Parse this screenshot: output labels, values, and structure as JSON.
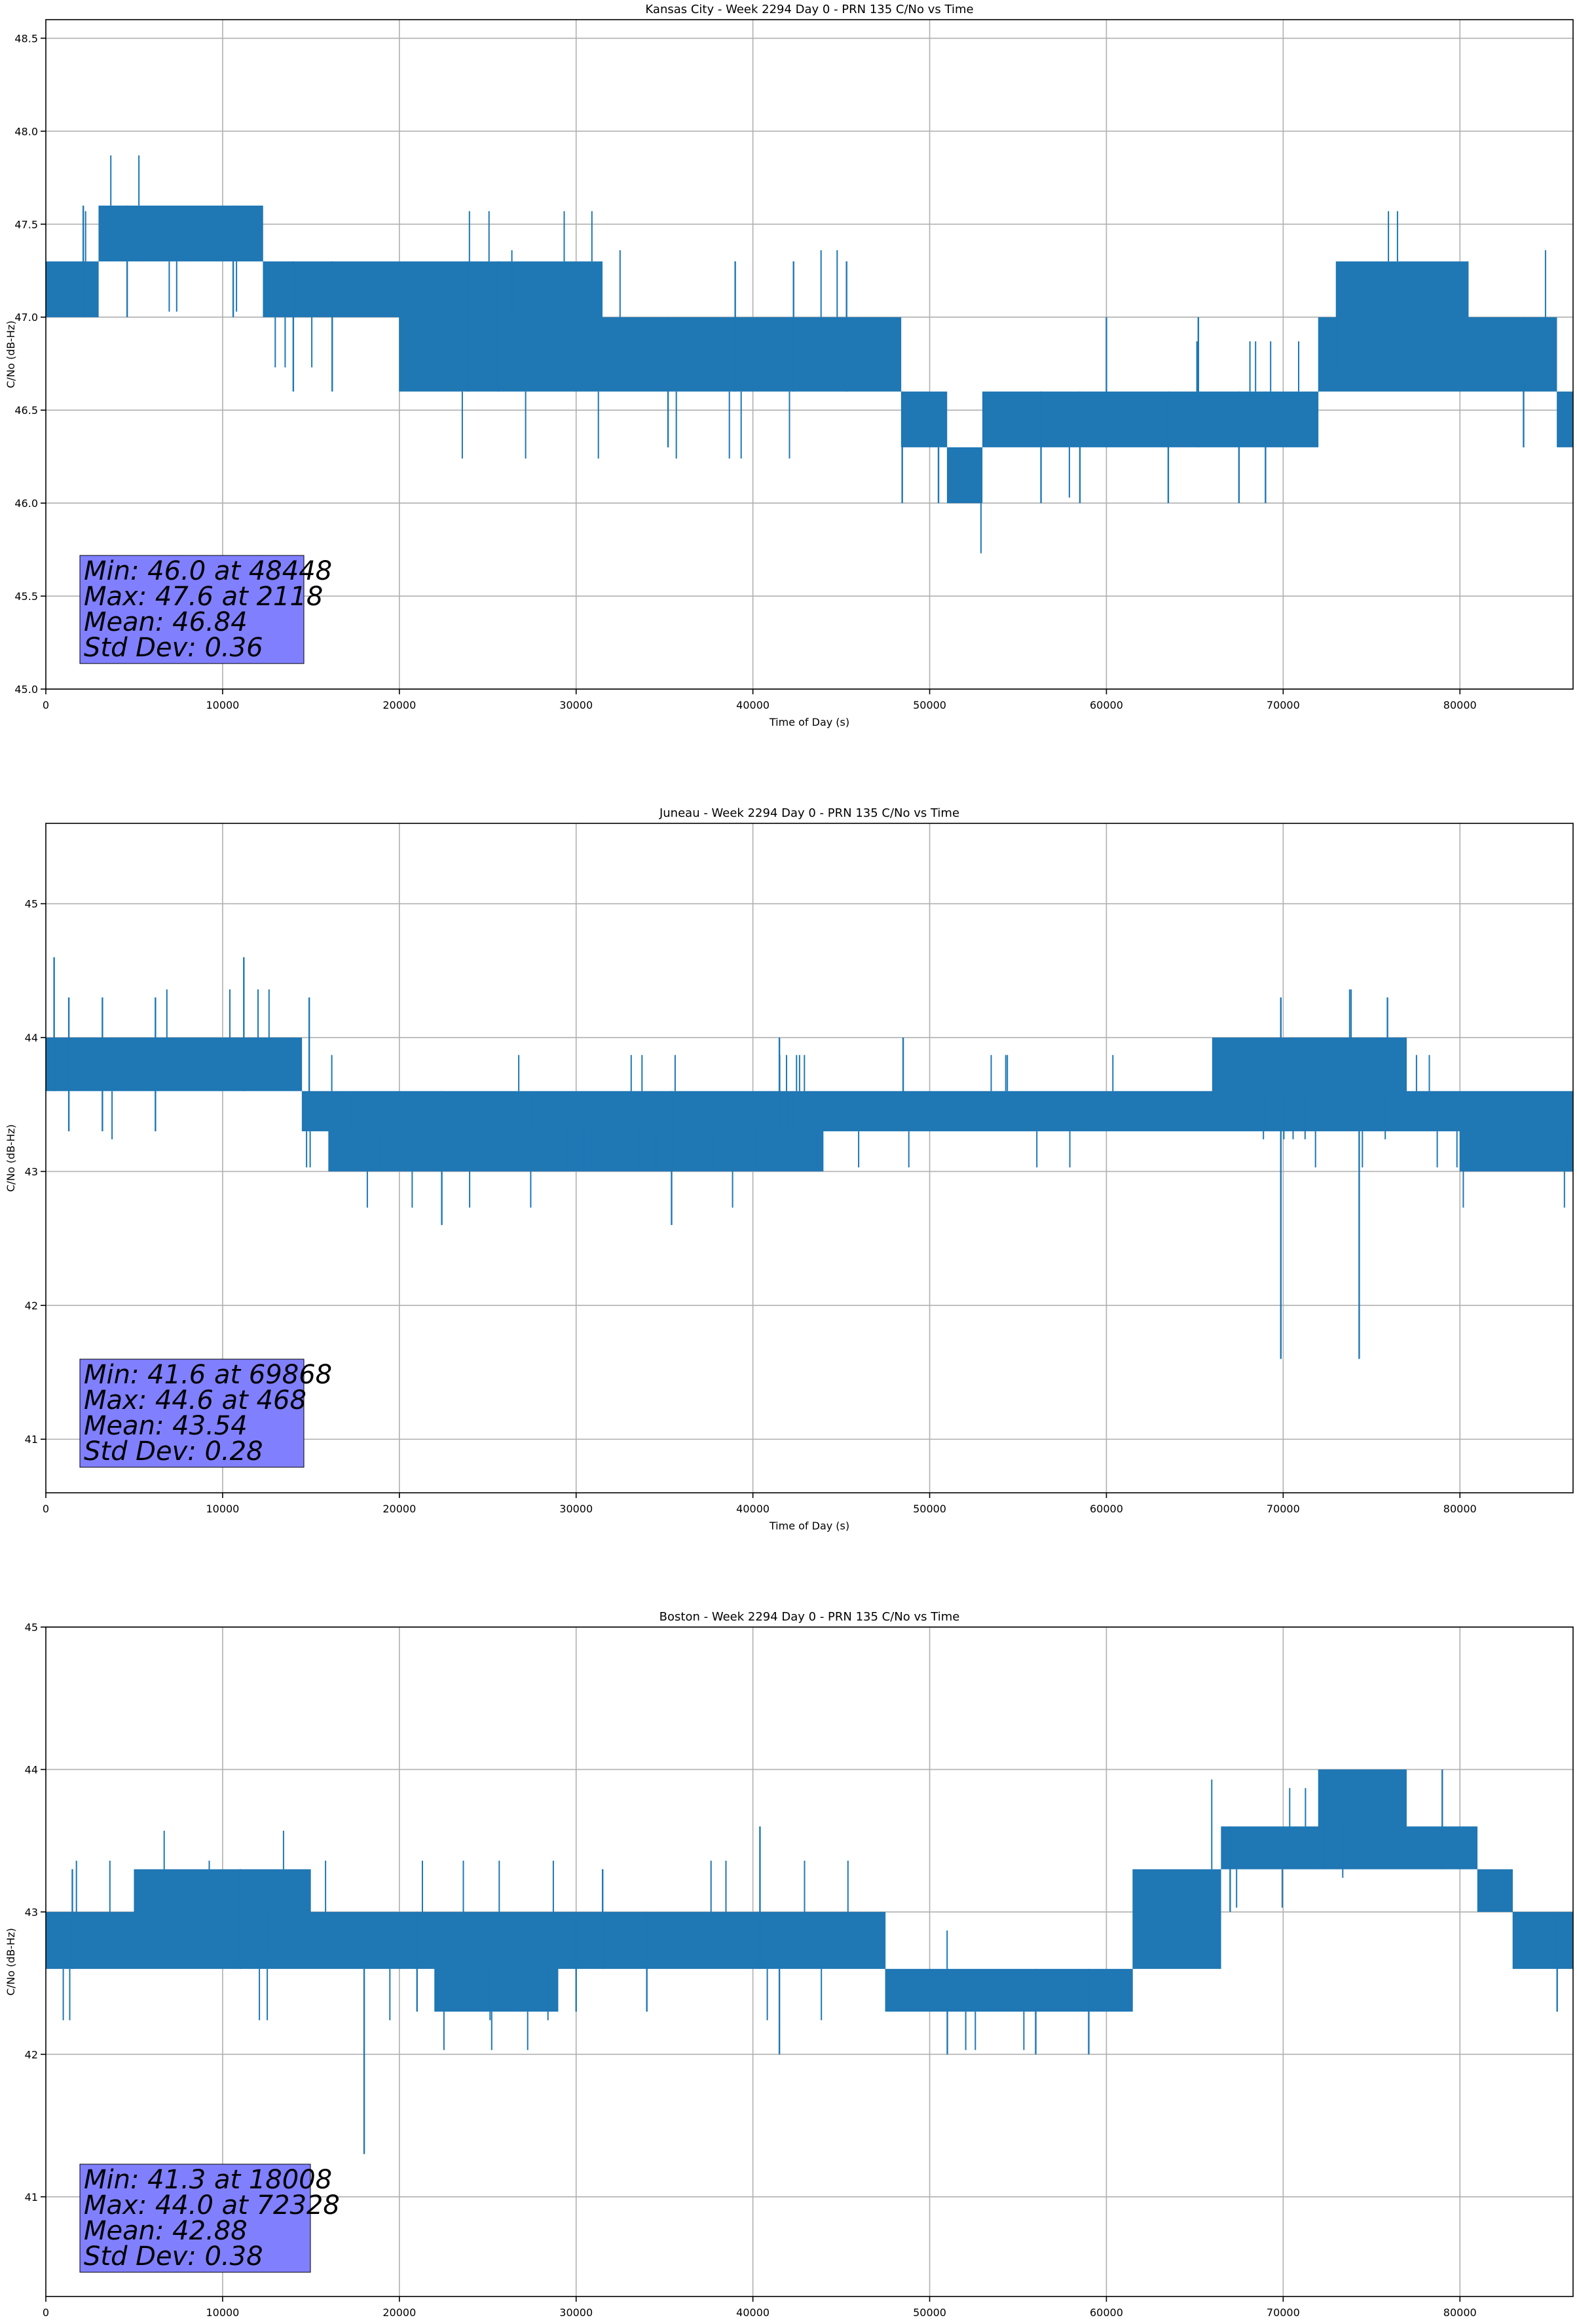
{
  "chart_data": [
    {
      "type": "line",
      "title": "Kansas City - Week 2294 Day 0 - PRN 135 C/No vs Time",
      "xlabel": "Time of Day (s)",
      "ylabel": "C/No (dB-Hz)",
      "xlim": [
        0,
        86400
      ],
      "ylim": [
        45.0,
        48.6
      ],
      "x_ticks": [
        0,
        10000,
        20000,
        30000,
        40000,
        50000,
        60000,
        70000,
        80000
      ],
      "y_ticks": [
        45.0,
        45.5,
        46.0,
        46.5,
        47.0,
        47.5,
        48.0,
        48.5
      ],
      "y_tick_labels": [
        "45.0",
        "45.5",
        "46.0",
        "46.5",
        "47.0",
        "47.5",
        "48.0",
        "48.5"
      ],
      "grid": true,
      "color": "#1f77b4",
      "series_segments": [
        {
          "x_start": 0,
          "x_end": 3000,
          "low": 47.0,
          "high": 47.3
        },
        {
          "x_start": 3000,
          "x_end": 12300,
          "low": 47.3,
          "high": 47.6
        },
        {
          "x_start": 12300,
          "x_end": 31500,
          "low": 47.0,
          "high": 47.3
        },
        {
          "x_start": 20000,
          "x_end": 31500,
          "low": 46.6,
          "high": 47.0
        },
        {
          "x_start": 31500,
          "x_end": 48400,
          "low": 46.6,
          "high": 47.0
        },
        {
          "x_start": 48400,
          "x_end": 51000,
          "low": 46.3,
          "high": 46.6
        },
        {
          "x_start": 51000,
          "x_end": 53000,
          "low": 46.0,
          "high": 46.3
        },
        {
          "x_start": 53000,
          "x_end": 72000,
          "low": 46.3,
          "high": 46.6
        },
        {
          "x_start": 72000,
          "x_end": 81000,
          "low": 46.6,
          "high": 47.0
        },
        {
          "x_start": 73000,
          "x_end": 80500,
          "low": 47.0,
          "high": 47.3
        },
        {
          "x_start": 81000,
          "x_end": 85500,
          "low": 46.6,
          "high": 47.0
        },
        {
          "x_start": 85500,
          "x_end": 86400,
          "low": 46.3,
          "high": 46.6
        }
      ],
      "spikes": [
        {
          "x": 2118,
          "low": 47.0,
          "high": 47.6
        },
        {
          "x": 4600,
          "low": 47.0,
          "high": 47.6
        },
        {
          "x": 10600,
          "low": 47.0,
          "high": 47.6
        },
        {
          "x": 14000,
          "low": 46.6,
          "high": 47.3
        },
        {
          "x": 16200,
          "low": 46.6,
          "high": 47.3
        },
        {
          "x": 23900,
          "low": 46.6,
          "high": 47.3
        },
        {
          "x": 25600,
          "low": 46.6,
          "high": 47.3
        },
        {
          "x": 35200,
          "low": 46.3,
          "high": 47.0
        },
        {
          "x": 39000,
          "low": 46.6,
          "high": 47.3
        },
        {
          "x": 42300,
          "low": 46.6,
          "high": 47.3
        },
        {
          "x": 45300,
          "low": 46.6,
          "high": 47.3
        },
        {
          "x": 48448,
          "low": 46.0,
          "high": 46.6
        },
        {
          "x": 50500,
          "low": 46.0,
          "high": 46.3
        },
        {
          "x": 56300,
          "low": 46.0,
          "high": 46.6
        },
        {
          "x": 58500,
          "low": 46.0,
          "high": 46.6
        },
        {
          "x": 60000,
          "low": 46.3,
          "high": 47.0
        },
        {
          "x": 63500,
          "low": 46.0,
          "high": 46.6
        },
        {
          "x": 65200,
          "low": 46.3,
          "high": 47.0
        },
        {
          "x": 67500,
          "low": 46.0,
          "high": 46.6
        },
        {
          "x": 69000,
          "low": 46.0,
          "high": 46.6
        },
        {
          "x": 83600,
          "low": 46.3,
          "high": 47.0
        }
      ],
      "stats": [
        "Min: 46.0 at 48448",
        "Max: 47.6 at 2118",
        "Mean: 46.84",
        "Std Dev: 0.36"
      ]
    },
    {
      "type": "line",
      "title": "Juneau - Week 2294 Day 0 - PRN 135 C/No vs Time",
      "xlabel": "Time of Day (s)",
      "ylabel": "C/No (dB-Hz)",
      "xlim": [
        0,
        86400
      ],
      "ylim": [
        40.6,
        45.6
      ],
      "x_ticks": [
        0,
        10000,
        20000,
        30000,
        40000,
        50000,
        60000,
        70000,
        80000
      ],
      "y_ticks": [
        41,
        42,
        43,
        44,
        45
      ],
      "y_tick_labels": [
        "41",
        "42",
        "43",
        "44",
        "45"
      ],
      "grid": true,
      "color": "#1f77b4",
      "series_segments": [
        {
          "x_start": 0,
          "x_end": 14500,
          "low": 43.6,
          "high": 44.0
        },
        {
          "x_start": 14500,
          "x_end": 86400,
          "low": 43.3,
          "high": 43.6
        },
        {
          "x_start": 16000,
          "x_end": 36000,
          "low": 43.0,
          "high": 43.3
        },
        {
          "x_start": 35500,
          "x_end": 44000,
          "low": 43.0,
          "high": 43.3
        },
        {
          "x_start": 66000,
          "x_end": 77000,
          "low": 43.6,
          "high": 44.0
        },
        {
          "x_start": 80000,
          "x_end": 86400,
          "low": 43.0,
          "high": 43.3
        }
      ],
      "spikes": [
        {
          "x": 468,
          "low": 43.6,
          "high": 44.6
        },
        {
          "x": 1300,
          "low": 43.3,
          "high": 44.3
        },
        {
          "x": 3200,
          "low": 43.3,
          "high": 44.3
        },
        {
          "x": 6200,
          "low": 43.3,
          "high": 44.3
        },
        {
          "x": 11200,
          "low": 43.6,
          "high": 44.6
        },
        {
          "x": 14900,
          "low": 43.3,
          "high": 44.3
        },
        {
          "x": 22400,
          "low": 42.6,
          "high": 43.6
        },
        {
          "x": 35400,
          "low": 42.6,
          "high": 43.6
        },
        {
          "x": 41500,
          "low": 43.3,
          "high": 44.0
        },
        {
          "x": 48500,
          "low": 43.3,
          "high": 44.0
        },
        {
          "x": 69868,
          "low": 41.6,
          "high": 44.3
        },
        {
          "x": 74300,
          "low": 41.6,
          "high": 43.6
        },
        {
          "x": 75900,
          "low": 43.6,
          "high": 44.3
        }
      ],
      "stats": [
        "Min: 41.6 at 69868",
        "Max: 44.6 at 468",
        "Mean: 43.54",
        "Std Dev: 0.28"
      ]
    },
    {
      "type": "line",
      "title": "Boston - Week 2294 Day 0 - PRN 135 C/No vs Time",
      "xlabel": "Time of Day (s)",
      "ylabel": "C/No (dB-Hz)",
      "xlim": [
        0,
        86400
      ],
      "ylim": [
        40.3,
        45.0
      ],
      "x_ticks": [
        0,
        10000,
        20000,
        30000,
        40000,
        50000,
        60000,
        70000,
        80000
      ],
      "y_ticks": [
        41,
        42,
        43,
        44,
        45
      ],
      "y_tick_labels": [
        "41",
        "42",
        "43",
        "44",
        "45"
      ],
      "grid": true,
      "color": "#1f77b4",
      "series_segments": [
        {
          "x_start": 0,
          "x_end": 47500,
          "low": 42.6,
          "high": 43.0
        },
        {
          "x_start": 5000,
          "x_end": 15000,
          "low": 43.0,
          "high": 43.3
        },
        {
          "x_start": 22000,
          "x_end": 29000,
          "low": 42.3,
          "high": 42.6
        },
        {
          "x_start": 47500,
          "x_end": 61500,
          "low": 42.3,
          "high": 42.6
        },
        {
          "x_start": 61500,
          "x_end": 66500,
          "low": 42.6,
          "high": 43.3
        },
        {
          "x_start": 66500,
          "x_end": 81000,
          "low": 43.3,
          "high": 43.6
        },
        {
          "x_start": 72000,
          "x_end": 77000,
          "low": 43.6,
          "high": 44.0
        },
        {
          "x_start": 81000,
          "x_end": 83000,
          "low": 43.0,
          "high": 43.3
        },
        {
          "x_start": 83000,
          "x_end": 86400,
          "low": 42.6,
          "high": 43.0
        }
      ],
      "spikes": [
        {
          "x": 1500,
          "low": 42.6,
          "high": 43.3
        },
        {
          "x": 11000,
          "low": 42.6,
          "high": 43.3
        },
        {
          "x": 18008,
          "low": 41.3,
          "high": 42.6
        },
        {
          "x": 21000,
          "low": 42.3,
          "high": 43.0
        },
        {
          "x": 30000,
          "low": 42.3,
          "high": 43.0
        },
        {
          "x": 31500,
          "low": 42.6,
          "high": 43.3
        },
        {
          "x": 34000,
          "low": 42.3,
          "high": 43.0
        },
        {
          "x": 40400,
          "low": 42.6,
          "high": 43.6
        },
        {
          "x": 41500,
          "low": 42.0,
          "high": 42.6
        },
        {
          "x": 51000,
          "low": 42.0,
          "high": 42.6
        },
        {
          "x": 56000,
          "low": 42.0,
          "high": 42.6
        },
        {
          "x": 59000,
          "low": 42.0,
          "high": 42.6
        },
        {
          "x": 67000,
          "low": 43.0,
          "high": 43.6
        },
        {
          "x": 72328,
          "low": 43.3,
          "high": 44.0
        },
        {
          "x": 79000,
          "low": 43.3,
          "high": 44.0
        },
        {
          "x": 85500,
          "low": 42.3,
          "high": 43.0
        }
      ],
      "stats": [
        "Min: 41.3 at 18008",
        "Max: 44.0 at 72328",
        "Mean: 42.88",
        "Std Dev: 0.38"
      ]
    }
  ]
}
